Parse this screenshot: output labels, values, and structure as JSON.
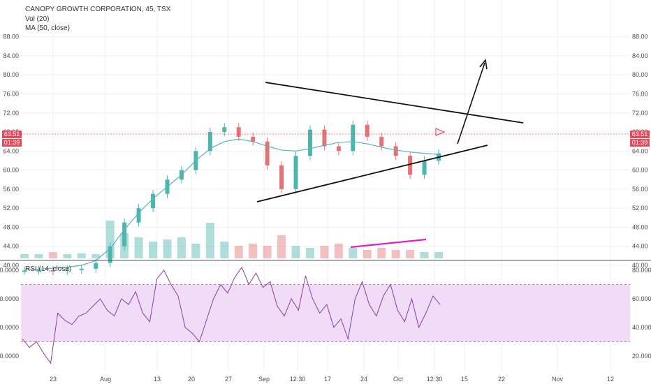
{
  "legend": {
    "title": "CANOPY GROWTH CORPORATION, 45, TSX",
    "vol": "Vol (20)",
    "ma": "MA (50, close)",
    "rsi": "RSI (14, close)"
  },
  "price_badge": {
    "value": "63.51",
    "countdown": "01:39",
    "color": "#e8485a"
  },
  "colors": {
    "up": "#4db6ac",
    "down": "#e57373",
    "ma": "#5ab0c0",
    "rsi": "#8a3ca8",
    "rsi_band": "#f1dcf7",
    "pink_line": "#e020c0"
  },
  "chart_data": [
    {
      "type": "candlestick",
      "name": "price",
      "title": "CANOPY GROWTH CORPORATION, 45, TSX",
      "ylim": [
        37,
        91
      ],
      "y_ticks": [
        "88.00",
        "84.00",
        "80.00",
        "76.00",
        "72.00",
        "68.00",
        "64.00",
        "60.00",
        "56.00",
        "52.00",
        "48.00",
        "44.00",
        "40.00"
      ],
      "x_ticks": [
        "23",
        "Aug",
        "13",
        "20",
        "27",
        "Sep",
        "12:30",
        "17",
        "24",
        "Oct",
        "12:30",
        "15",
        "22",
        "Nov",
        "12"
      ],
      "last_price": 63.51,
      "series": [
        {
          "name": "MA (50, close)",
          "approx_values": [
            39.0,
            39.2,
            39.4,
            39.6,
            40.0,
            41.0,
            43.5,
            47.5,
            51.0,
            54.0,
            56.5,
            59.0,
            62.0,
            64.5,
            66.0,
            66.5,
            66.0,
            65.0,
            64.2,
            64.0,
            64.5,
            65.2,
            65.8,
            66.0,
            65.5,
            64.8,
            64.2,
            63.8,
            63.5,
            63.3
          ]
        },
        {
          "name": "close",
          "approx_values": [
            38.9,
            39.0,
            38.8,
            39.1,
            39.3,
            40.5,
            44.0,
            49.0,
            52.0,
            55.0,
            58.0,
            60.0,
            64.0,
            68.0,
            69.0,
            67.0,
            66.0,
            61.0,
            56.0,
            63.0,
            68.5,
            65.0,
            64.0,
            69.5,
            67.0,
            65.0,
            63.0,
            59.0,
            62.0,
            63.5
          ]
        }
      ]
    },
    {
      "type": "bar",
      "name": "Vol (20)",
      "description_values": "relative volume 0-1",
      "values": [
        0.1,
        0.1,
        0.15,
        0.1,
        0.12,
        0.1,
        0.9,
        0.6,
        0.5,
        0.4,
        0.45,
        0.5,
        0.35,
        0.85,
        0.4,
        0.3,
        0.35,
        0.3,
        0.55,
        0.3,
        0.25,
        0.3,
        0.35,
        0.25,
        0.2,
        0.25,
        0.2,
        0.2,
        0.15,
        0.15
      ]
    },
    {
      "type": "line",
      "name": "RSI (14, close)",
      "ylim": [
        12,
        88
      ],
      "y_ticks": [
        "80.0000",
        "60.0000",
        "40.0000",
        "20.0000"
      ],
      "band": [
        30,
        70
      ],
      "x_ticks": [
        "23",
        "Aug",
        "13",
        "20",
        "27",
        "Sep",
        "12:30",
        "17",
        "24",
        "Oct",
        "12:30",
        "15",
        "22",
        "Nov",
        "12"
      ],
      "values": [
        32,
        26,
        30,
        22,
        15,
        50,
        45,
        42,
        48,
        50,
        55,
        60,
        52,
        48,
        60,
        56,
        65,
        50,
        44,
        74,
        80,
        70,
        62,
        40,
        36,
        30,
        45,
        60,
        70,
        64,
        75,
        82,
        70,
        78,
        68,
        72,
        55,
        48,
        60,
        52,
        76,
        60,
        50,
        56,
        40,
        46,
        32,
        60,
        72,
        56,
        48,
        62,
        70,
        52,
        44,
        60,
        40,
        50,
        62,
        56
      ]
    }
  ]
}
